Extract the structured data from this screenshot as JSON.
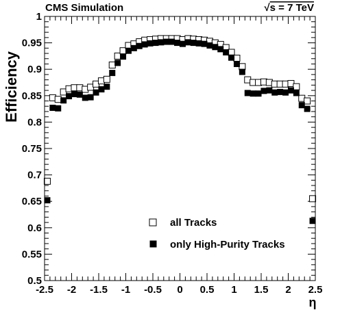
{
  "chart_data": {
    "type": "scatter",
    "experiment_label": "CMS Simulation",
    "energy_label": "√s = 7 TeV",
    "energy_prefix": "√",
    "energy_rest": "s = 7 TeV",
    "xlabel": "η",
    "ylabel": "Efficiency",
    "xlim": [
      -2.5,
      2.5
    ],
    "ylim": [
      0.5,
      1.0
    ],
    "x_ticks": [
      -2.5,
      -2,
      -1.5,
      -1,
      -0.5,
      0,
      0.5,
      1,
      1.5,
      2,
      2.5
    ],
    "x_tick_labels": [
      "-2.5",
      "-2",
      "-1.5",
      "-1",
      "-0.5",
      "0",
      "0.5",
      "1",
      "1.5",
      "2",
      "2.5"
    ],
    "y_ticks": [
      0.5,
      0.55,
      0.6,
      0.65,
      0.7,
      0.75,
      0.8,
      0.85,
      0.9,
      0.95,
      1.0
    ],
    "y_tick_labels": [
      "0.5",
      "0.55",
      "0.6",
      "0.65",
      "0.7",
      "0.75",
      "0.8",
      "0.85",
      "0.9",
      "0.95",
      "1"
    ],
    "grid": false,
    "legend_position": "bottom-center",
    "series": [
      {
        "name": "all Tracks",
        "marker": "open-square",
        "color": "#000000",
        "x": [
          -2.45,
          -2.35,
          -2.25,
          -2.15,
          -2.05,
          -1.95,
          -1.85,
          -1.75,
          -1.65,
          -1.55,
          -1.45,
          -1.35,
          -1.25,
          -1.15,
          -1.05,
          -0.95,
          -0.85,
          -0.75,
          -0.65,
          -0.55,
          -0.45,
          -0.35,
          -0.25,
          -0.15,
          -0.05,
          0.05,
          0.15,
          0.25,
          0.35,
          0.45,
          0.55,
          0.65,
          0.75,
          0.85,
          0.95,
          1.05,
          1.15,
          1.25,
          1.35,
          1.45,
          1.55,
          1.65,
          1.75,
          1.85,
          1.95,
          2.05,
          2.15,
          2.25,
          2.35,
          2.45
        ],
        "values": [
          0.688,
          0.846,
          0.843,
          0.857,
          0.863,
          0.865,
          0.865,
          0.862,
          0.866,
          0.872,
          0.878,
          0.881,
          0.908,
          0.925,
          0.935,
          0.945,
          0.948,
          0.952,
          0.955,
          0.956,
          0.957,
          0.958,
          0.958,
          0.958,
          0.958,
          0.956,
          0.958,
          0.957,
          0.956,
          0.955,
          0.953,
          0.95,
          0.947,
          0.941,
          0.932,
          0.921,
          0.905,
          0.88,
          0.875,
          0.875,
          0.876,
          0.875,
          0.872,
          0.872,
          0.872,
          0.873,
          0.867,
          0.845,
          0.84,
          0.655
        ]
      },
      {
        "name": "only High-Purity Tracks",
        "marker": "filled-square",
        "color": "#000000",
        "x": [
          -2.45,
          -2.35,
          -2.25,
          -2.15,
          -2.05,
          -1.95,
          -1.85,
          -1.75,
          -1.65,
          -1.55,
          -1.45,
          -1.35,
          -1.25,
          -1.15,
          -1.05,
          -0.95,
          -0.85,
          -0.75,
          -0.65,
          -0.55,
          -0.45,
          -0.35,
          -0.25,
          -0.15,
          -0.05,
          0.05,
          0.15,
          0.25,
          0.35,
          0.45,
          0.55,
          0.65,
          0.75,
          0.85,
          0.95,
          1.05,
          1.15,
          1.25,
          1.35,
          1.45,
          1.55,
          1.65,
          1.75,
          1.85,
          1.95,
          2.05,
          2.15,
          2.25,
          2.35,
          2.45
        ],
        "values": [
          0.652,
          0.827,
          0.826,
          0.841,
          0.849,
          0.853,
          0.852,
          0.846,
          0.847,
          0.856,
          0.862,
          0.867,
          0.893,
          0.912,
          0.924,
          0.935,
          0.94,
          0.944,
          0.947,
          0.949,
          0.95,
          0.951,
          0.952,
          0.952,
          0.95,
          0.948,
          0.951,
          0.95,
          0.949,
          0.948,
          0.945,
          0.942,
          0.938,
          0.932,
          0.922,
          0.91,
          0.895,
          0.855,
          0.854,
          0.854,
          0.859,
          0.86,
          0.856,
          0.857,
          0.856,
          0.86,
          0.855,
          0.832,
          0.825,
          0.613
        ]
      }
    ]
  }
}
